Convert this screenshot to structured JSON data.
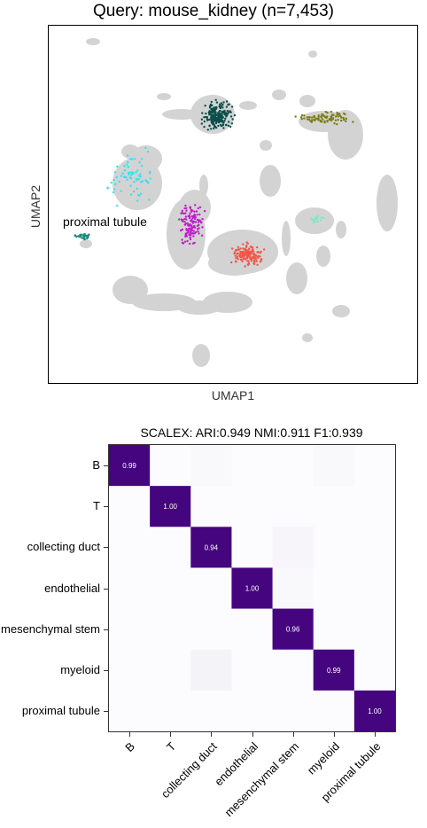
{
  "umap": {
    "title": "Query: mouse_kidney (n=7,453)",
    "xlabel": "UMAP1",
    "ylabel": "UMAP2",
    "annotation": "proximal tubule",
    "colors": {
      "background": "#d3d3d3",
      "dark_teal": "#0b4f4a",
      "olive": "#7a7f12",
      "cyan": "#36e0f0",
      "magenta": "#c01ec8",
      "salmon": "#f2564a",
      "teal": "#1c8a7e",
      "mint": "#7de8c6"
    }
  },
  "chart_data": [
    {
      "type": "heatmap",
      "title": "SCALEX:  ARI:0.949   NMI:0.911   F1:0.939",
      "rows": [
        "B",
        "T",
        "collecting duct",
        "endothelial",
        "mesenchymal stem",
        "myeloid",
        "proximal tubule"
      ],
      "cols": [
        "B",
        "T",
        "collecting duct",
        "endothelial",
        "mesenchymal stem",
        "myeloid",
        "proximal tubule"
      ],
      "values": [
        [
          0.99,
          0.0,
          0.01,
          0.0,
          0.0,
          0.01,
          0.0
        ],
        [
          0.0,
          1.0,
          0.0,
          0.0,
          0.0,
          0.0,
          0.0
        ],
        [
          0.0,
          0.0,
          0.94,
          0.0,
          0.02,
          0.0,
          0.0
        ],
        [
          0.0,
          0.0,
          0.0,
          1.0,
          0.01,
          0.0,
          0.0
        ],
        [
          0.0,
          0.0,
          0.0,
          0.0,
          0.96,
          0.0,
          0.0
        ],
        [
          0.0,
          0.0,
          0.03,
          0.0,
          0.0,
          0.99,
          0.0
        ],
        [
          0.0,
          0.0,
          0.0,
          0.0,
          0.0,
          0.0,
          1.0
        ]
      ],
      "value_labels": [
        "0.99",
        "1.00",
        "0.94",
        "1.00",
        "0.96",
        "0.99",
        "1.00"
      ],
      "colormap": "Purples",
      "diagonal_color": "#45057f"
    }
  ]
}
